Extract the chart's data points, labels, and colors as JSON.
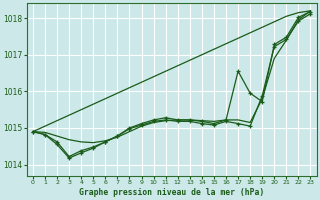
{
  "background_color": "#cce8e8",
  "grid_color": "#ffffff",
  "line_color": "#1a5c1a",
  "marker_color": "#1a5c1a",
  "title": "Graphe pression niveau de la mer (hPa)",
  "ylim": [
    1013.7,
    1018.4
  ],
  "xlim": [
    -0.5,
    23.5
  ],
  "yticks": [
    1014,
    1015,
    1016,
    1017,
    1018
  ],
  "xticks": [
    0,
    1,
    2,
    3,
    4,
    5,
    6,
    7,
    8,
    9,
    10,
    11,
    12,
    13,
    14,
    15,
    16,
    17,
    18,
    19,
    20,
    21,
    22,
    23
  ],
  "series_no_marker": [
    [
      1014.9,
      1015.05,
      1015.2,
      1015.35,
      1015.5,
      1015.65,
      1015.8,
      1015.95,
      1016.1,
      1016.25,
      1016.4,
      1016.55,
      1016.7,
      1016.85,
      1017.0,
      1017.15,
      1017.3,
      1017.45,
      1017.6,
      1017.75,
      1017.9,
      1018.05,
      1018.15,
      1018.2
    ],
    [
      1014.9,
      1014.88,
      1014.78,
      1014.68,
      1014.62,
      1014.6,
      1014.65,
      1014.75,
      1014.9,
      1015.05,
      1015.15,
      1015.2,
      1015.22,
      1015.22,
      1015.2,
      1015.18,
      1015.22,
      1015.22,
      1015.15,
      1015.8,
      1016.9,
      1017.4,
      1017.95,
      1018.2
    ]
  ],
  "series_with_marker": [
    [
      1014.9,
      1014.82,
      1014.62,
      1014.22,
      1014.38,
      1014.48,
      1014.62,
      1014.78,
      1015.0,
      1015.12,
      1015.22,
      1015.28,
      1015.22,
      1015.22,
      1015.18,
      1015.12,
      1015.22,
      1016.55,
      1015.95,
      1015.72,
      1017.28,
      1017.48,
      1018.02,
      1018.18
    ],
    [
      1014.9,
      1014.82,
      1014.55,
      1014.18,
      1014.32,
      1014.45,
      1014.62,
      1014.78,
      1014.98,
      1015.08,
      1015.18,
      1015.22,
      1015.18,
      1015.18,
      1015.12,
      1015.08,
      1015.18,
      1015.12,
      1015.05,
      1015.88,
      1017.22,
      1017.42,
      1017.92,
      1018.12
    ]
  ]
}
